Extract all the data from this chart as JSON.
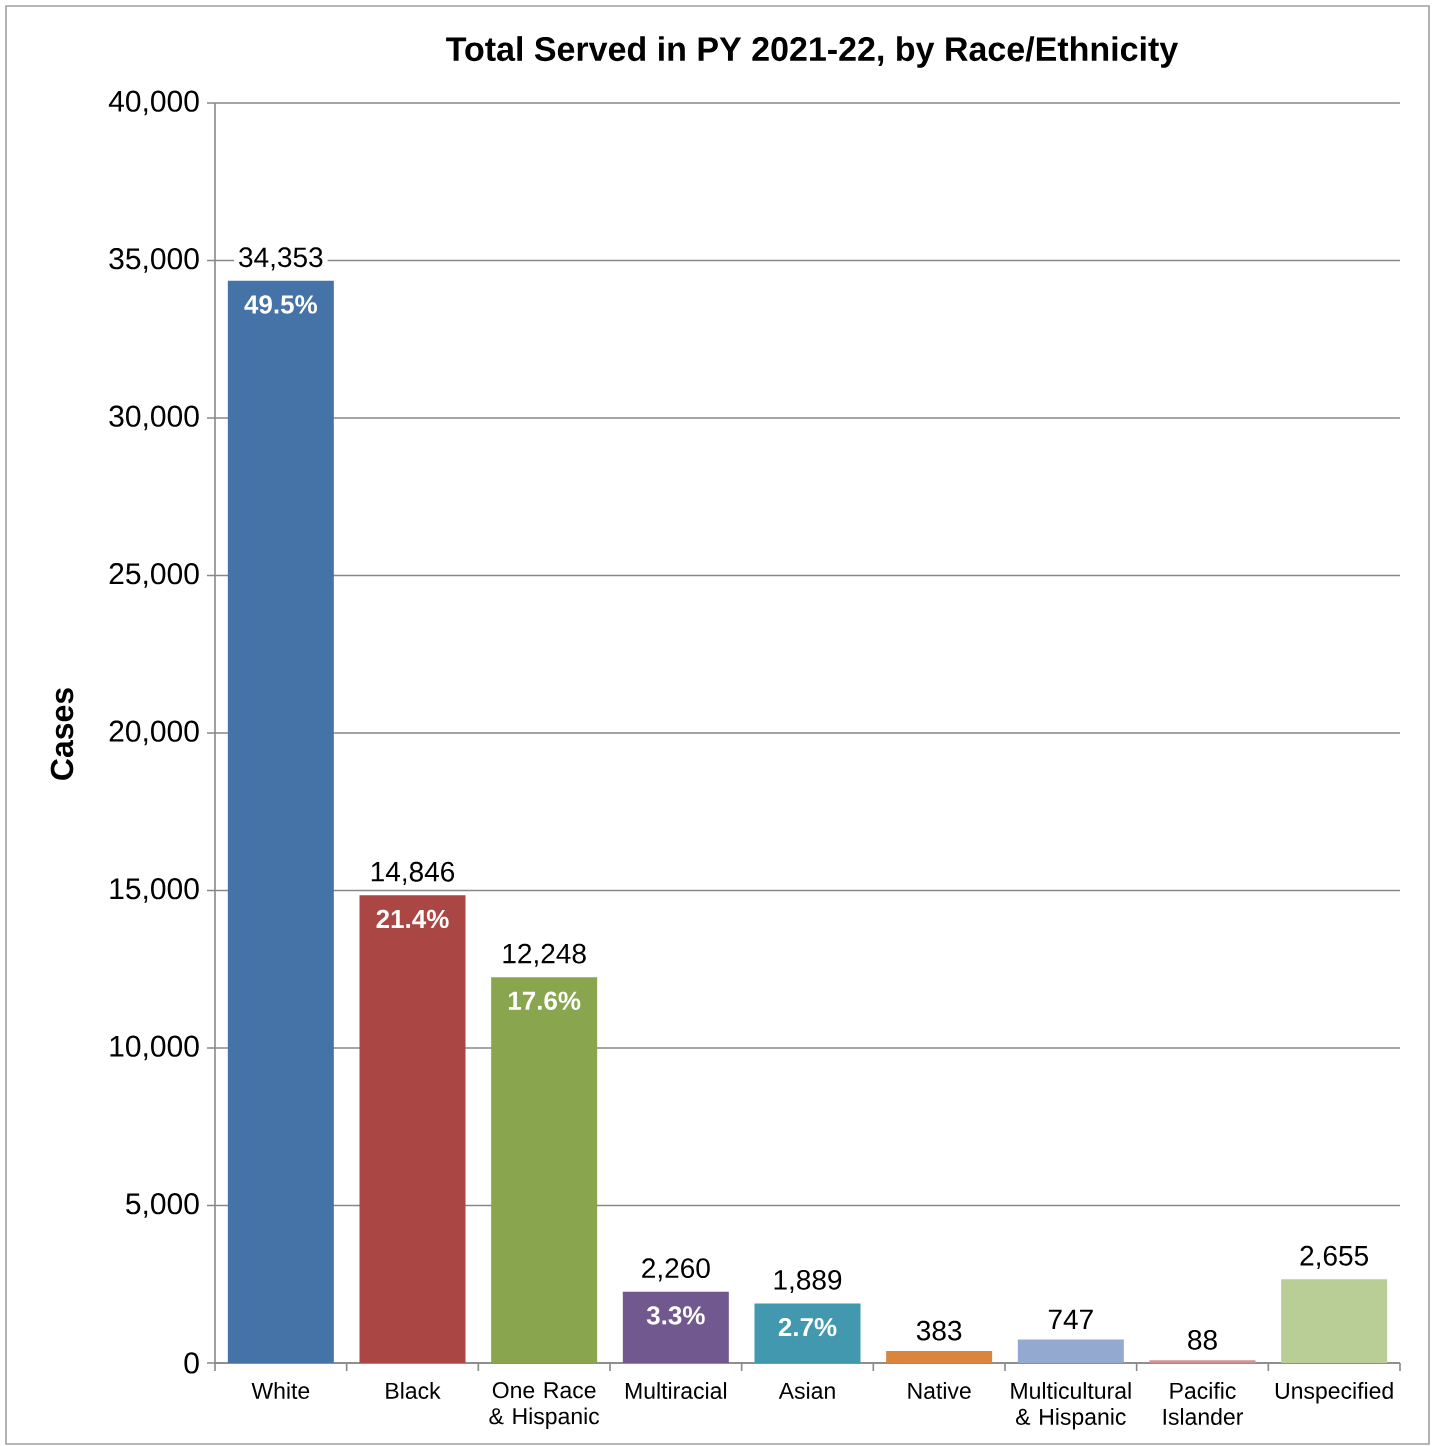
{
  "chart_data": {
    "type": "bar",
    "title": "Total Served in PY 2021-22, by Race/Ethnicity",
    "ylabel": "Cases",
    "categories": [
      "White",
      "Black",
      "One Race & Hispanic",
      "Multiracial",
      "Asian",
      "Native",
      "Multicultural & Hispanic",
      "Pacific Islander",
      "Unspecified"
    ],
    "values": [
      34353,
      14846,
      12248,
      2260,
      1889,
      383,
      747,
      88,
      2655
    ],
    "colors": [
      "#4572a7",
      "#aa4643",
      "#89a54e",
      "#71588f",
      "#4198af",
      "#db843d",
      "#93a9cf",
      "#d19392",
      "#b9cd96"
    ],
    "value_labels": [
      "34,353",
      "14,846",
      "12,248",
      "2,260",
      "1,889",
      "383",
      "747",
      "88",
      "2,655"
    ],
    "annotations": [
      "49.5%",
      "21.4%",
      "17.6%",
      "3.3%",
      "2.7%"
    ],
    "ylim": [
      0,
      40000
    ],
    "yticks": [
      {
        "value": 0,
        "label": "0"
      },
      {
        "value": 5000,
        "label": "5,000"
      },
      {
        "value": 10000,
        "label": "10,000"
      },
      {
        "value": 15000,
        "label": "15,000"
      },
      {
        "value": 20000,
        "label": "20,000"
      },
      {
        "value": 25000,
        "label": "25,000"
      },
      {
        "value": 30000,
        "label": "30,000"
      },
      {
        "value": 35000,
        "label": "35,000"
      },
      {
        "value": 40000,
        "label": "40,000"
      }
    ],
    "grid": "y"
  }
}
